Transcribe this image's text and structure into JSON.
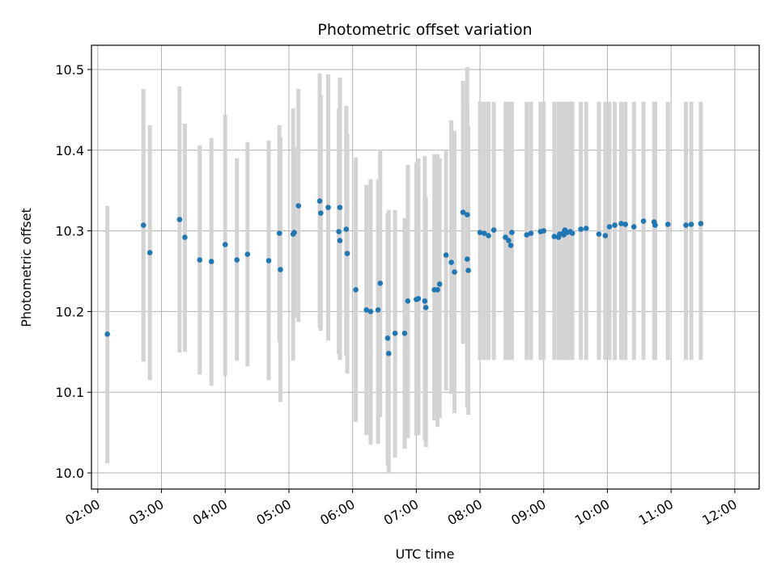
{
  "chart_data": {
    "type": "scatter",
    "title": "Photometric offset variation",
    "xlabel": "UTC time",
    "ylabel": "Photometric offset",
    "x_tick_labels": [
      "02:00",
      "03:00",
      "04:00",
      "05:00",
      "06:00",
      "07:00",
      "08:00",
      "09:00",
      "10:00",
      "11:00",
      "12:00"
    ],
    "x_tick_values": [
      120,
      180,
      240,
      300,
      360,
      420,
      480,
      540,
      600,
      660,
      720
    ],
    "y_tick_labels": [
      "10.0",
      "10.1",
      "10.2",
      "10.3",
      "10.4",
      "10.5"
    ],
    "y_tick_values": [
      10.0,
      10.1,
      10.2,
      10.3,
      10.4,
      10.5
    ],
    "xlim": [
      "01:54",
      "12:23"
    ],
    "ylim": [
      9.98,
      10.53
    ],
    "grid": true,
    "colors": {
      "point": "#1f77b4",
      "errorbar": "#d3d3d3",
      "grid": "#b0b0b0",
      "axis": "#000000"
    },
    "series": [
      {
        "times": [
          "02:09",
          "02:43",
          "02:49",
          "03:17",
          "03:22",
          "03:36",
          "03:47",
          "04:00",
          "04:11",
          "04:21",
          "04:41",
          "04:51",
          "04:52",
          "05:04",
          "05:05",
          "05:09",
          "05:29",
          "05:30",
          "05:37",
          "05:47",
          "05:48",
          "05:48",
          "05:54",
          "05:55",
          "06:03",
          "06:13",
          "06:17",
          "06:24",
          "06:26",
          "06:33",
          "06:34",
          "06:40",
          "06:49",
          "06:52",
          "07:00",
          "07:02",
          "07:08",
          "07:09",
          "07:17",
          "07:20",
          "07:22",
          "07:28",
          "07:33",
          "07:36",
          "07:44",
          "07:48",
          "07:48",
          "07:49",
          "08:00",
          "08:04",
          "08:08",
          "08:13",
          "08:24",
          "08:27",
          "08:29",
          "08:30",
          "08:44",
          "08:48",
          "08:57",
          "09:00",
          "09:10",
          "09:14",
          "09:15",
          "09:19",
          "09:19",
          "09:20",
          "09:22",
          "09:25",
          "09:27",
          "09:35",
          "09:40",
          "09:52",
          "09:58",
          "10:02",
          "10:07",
          "10:13",
          "10:17",
          "10:25",
          "10:34",
          "10:44",
          "10:45",
          "10:57",
          "11:14",
          "11:19",
          "11:28"
        ],
        "y": [
          10.172,
          10.307,
          10.273,
          10.314,
          10.292,
          10.264,
          10.262,
          10.283,
          10.264,
          10.271,
          10.263,
          10.297,
          10.252,
          10.296,
          10.298,
          10.331,
          10.337,
          10.322,
          10.329,
          10.299,
          10.329,
          10.288,
          10.302,
          10.272,
          10.227,
          10.202,
          10.2,
          10.202,
          10.235,
          10.167,
          10.148,
          10.173,
          10.173,
          10.213,
          10.215,
          10.216,
          10.213,
          10.205,
          10.227,
          10.227,
          10.234,
          10.27,
          10.261,
          10.249,
          10.323,
          10.32,
          10.265,
          10.251,
          10.298,
          10.297,
          10.294,
          10.301,
          10.292,
          10.288,
          10.282,
          10.298,
          10.295,
          10.297,
          10.299,
          10.3,
          10.293,
          10.292,
          10.296,
          10.295,
          10.298,
          10.301,
          10.298,
          10.299,
          10.297,
          10.302,
          10.303,
          10.296,
          10.294,
          10.305,
          10.307,
          10.309,
          10.308,
          10.305,
          10.312,
          10.311,
          10.307,
          10.308,
          10.307,
          10.308,
          10.309
        ],
        "err_low": [
          10.012,
          10.138,
          10.115,
          10.149,
          10.15,
          10.122,
          10.108,
          10.12,
          10.139,
          10.132,
          10.115,
          10.162,
          10.088,
          10.139,
          10.192,
          10.187,
          10.18,
          10.176,
          10.164,
          10.147,
          10.169,
          10.14,
          10.145,
          10.123,
          10.063,
          10.047,
          10.035,
          10.036,
          10.069,
          10.01,
          9.999,
          10.019,
          10.03,
          10.043,
          10.046,
          10.047,
          10.04,
          10.032,
          10.065,
          10.057,
          10.068,
          10.102,
          10.098,
          10.074,
          10.16,
          10.138,
          10.081,
          10.072,
          10.14,
          10.14,
          10.14,
          10.14,
          10.14,
          10.14,
          10.14,
          10.14,
          10.14,
          10.14,
          10.14,
          10.14,
          10.14,
          10.14,
          10.14,
          10.14,
          10.14,
          10.14,
          10.14,
          10.14,
          10.14,
          10.14,
          10.14,
          10.14,
          10.14,
          10.14,
          10.14,
          10.14,
          10.14,
          10.14,
          10.14,
          10.14,
          10.14,
          10.14,
          10.14,
          10.14,
          10.14
        ],
        "err_high": [
          10.331,
          10.476,
          10.431,
          10.479,
          10.433,
          10.406,
          10.415,
          10.444,
          10.39,
          10.41,
          10.412,
          10.431,
          10.416,
          10.452,
          10.403,
          10.476,
          10.495,
          10.468,
          10.494,
          10.451,
          10.49,
          10.433,
          10.455,
          10.42,
          10.391,
          10.357,
          10.364,
          10.364,
          10.401,
          10.322,
          10.326,
          10.326,
          10.316,
          10.382,
          10.385,
          10.39,
          10.393,
          10.343,
          10.395,
          10.395,
          10.39,
          10.4,
          10.437,
          10.424,
          10.486,
          10.503,
          10.453,
          10.43,
          10.46,
          10.46,
          10.46,
          10.46,
          10.46,
          10.46,
          10.46,
          10.46,
          10.46,
          10.46,
          10.46,
          10.46,
          10.46,
          10.46,
          10.46,
          10.46,
          10.46,
          10.46,
          10.46,
          10.46,
          10.46,
          10.46,
          10.46,
          10.46,
          10.46,
          10.46,
          10.46,
          10.46,
          10.46,
          10.46,
          10.46,
          10.46,
          10.46,
          10.46,
          10.46,
          10.46,
          10.46
        ]
      }
    ]
  }
}
